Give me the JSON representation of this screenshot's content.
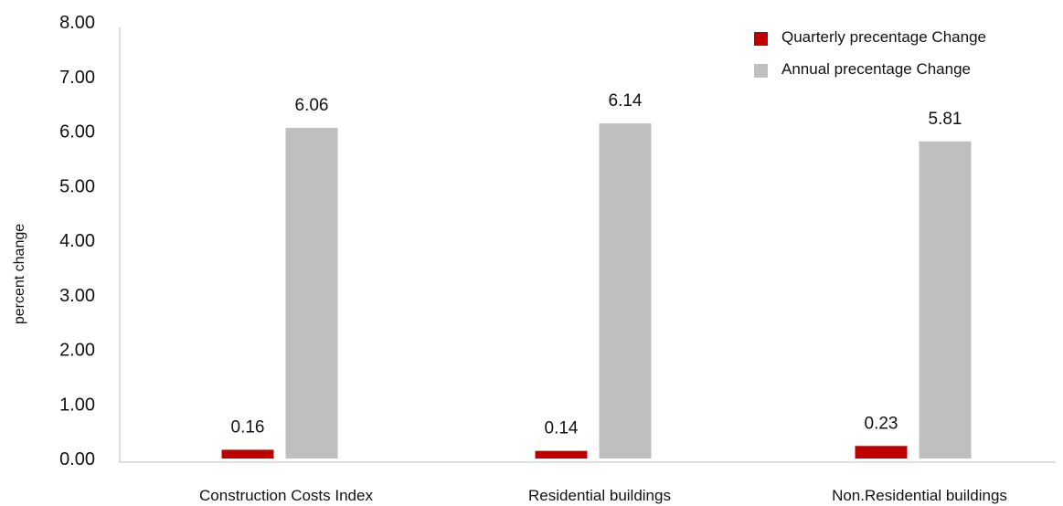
{
  "chart_data": {
    "type": "bar",
    "title": "",
    "xlabel": "",
    "ylabel": "percent change",
    "ylim": [
      0,
      8
    ],
    "yticks": [
      "0.00",
      "1.00",
      "2.00",
      "3.00",
      "4.00",
      "5.00",
      "6.00",
      "7.00",
      "8.00"
    ],
    "grid": false,
    "legend_position": "top-right",
    "categories": [
      "Construction Costs Index",
      "Residential buildings",
      "Non.Residential buildings"
    ],
    "series": [
      {
        "name": "Quarterly precentage Change",
        "color": "#c00000",
        "values": [
          0.16,
          0.14,
          0.23
        ],
        "labels": [
          "0.16",
          "0.14",
          "0.23"
        ]
      },
      {
        "name": "Annual precentage Change",
        "color": "#bfbfbf",
        "values": [
          6.06,
          6.14,
          5.81
        ],
        "labels": [
          "6.06",
          "6.14",
          "5.81"
        ]
      }
    ]
  }
}
